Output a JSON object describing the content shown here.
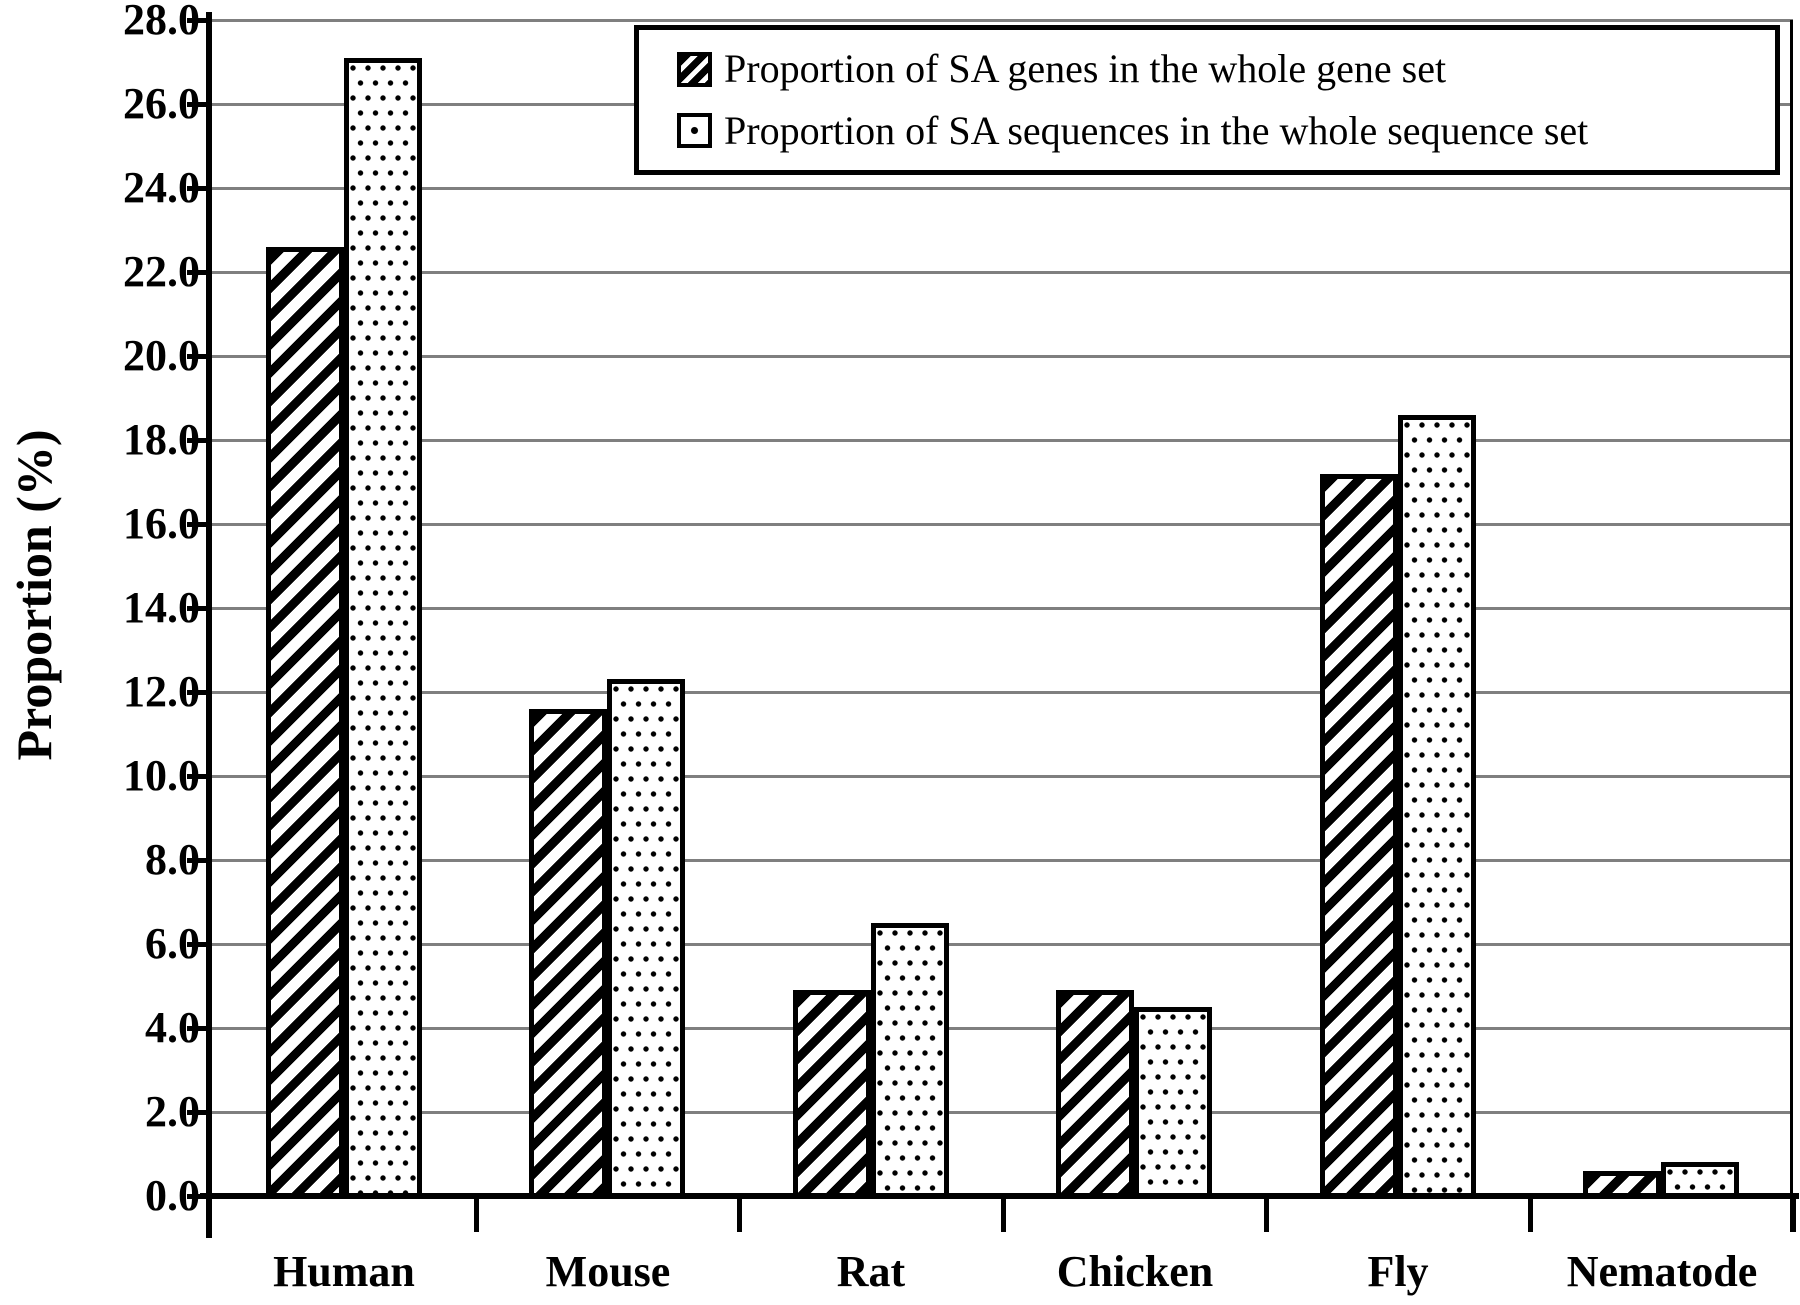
{
  "figure": {
    "background": "#ffffff",
    "y_axis_title": "Proportion (%)"
  },
  "legend": {
    "items": [
      {
        "label": "Proportion of SA genes in the whole gene set",
        "pattern": "hatch"
      },
      {
        "label": "Proportion of SA sequences in the whole sequence set",
        "pattern": "dots"
      }
    ]
  },
  "chart_data": {
    "type": "bar",
    "categories": [
      "Human",
      "Mouse",
      "Rat",
      "Chicken",
      "Fly",
      "Nematode"
    ],
    "series": [
      {
        "name": "Proportion of SA genes in the whole gene set",
        "pattern": "hatch",
        "values": [
          22.6,
          11.6,
          4.9,
          4.9,
          17.2,
          0.6
        ]
      },
      {
        "name": "Proportion of SA sequences in the whole sequence set",
        "pattern": "dots",
        "values": [
          27.1,
          12.3,
          6.5,
          4.5,
          18.6,
          0.8
        ]
      }
    ],
    "title": "",
    "xlabel": "",
    "ylabel": "Proportion (%)",
    "ylim": [
      0,
      28
    ],
    "ytick_step": 2,
    "ytick_decimals": 1,
    "grid": true,
    "legend_position": "top-right",
    "colors": {
      "bar_fill": "#ffffff",
      "bar_stroke": "#000000",
      "gridline": "#7f7f7f",
      "axis": "#000000",
      "text": "#000000"
    }
  }
}
